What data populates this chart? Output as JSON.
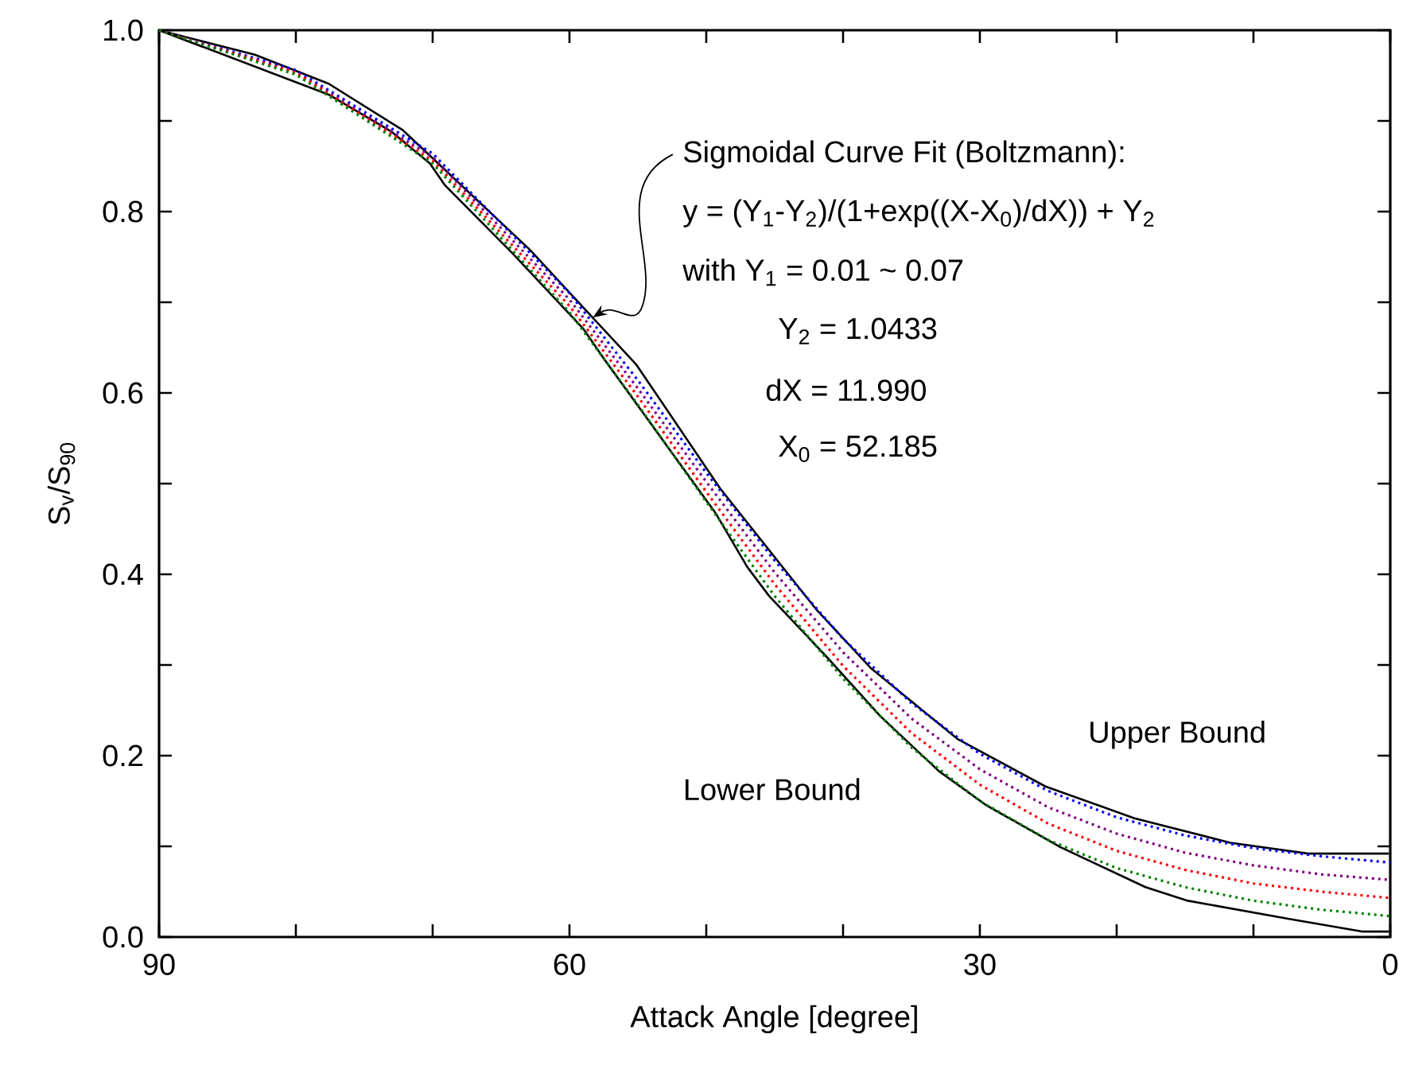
{
  "chart_data": {
    "type": "line",
    "xlabel": "Attack Angle [degree]",
    "ylabel": "S$_{v}$/S$_{90}$",
    "xlim": [
      90,
      0
    ],
    "ylim": [
      0,
      1
    ],
    "xticks": [
      90,
      {
        "value": 80,
        "label": null
      },
      {
        "value": 70,
        "label": null
      },
      60,
      {
        "value": 50,
        "label": null
      },
      {
        "value": 40,
        "label": null
      },
      30,
      {
        "value": 20,
        "label": null
      },
      {
        "value": 10,
        "label": null
      },
      0
    ],
    "yticks": [
      {
        "value": 0,
        "label": "0.0"
      },
      {
        "value": 0.1,
        "label": null
      },
      {
        "value": 0.2,
        "label": "0.2"
      },
      {
        "value": 0.3,
        "label": null
      },
      {
        "value": 0.4,
        "label": "0.4"
      },
      {
        "value": 0.5,
        "label": null
      },
      {
        "value": 0.6,
        "label": "0.6"
      },
      {
        "value": 0.7,
        "label": null
      },
      {
        "value": 0.8,
        "label": "0.8"
      },
      {
        "value": 0.9,
        "label": null
      },
      {
        "value": 1.0,
        "label": "1.0"
      }
    ],
    "series": [
      {
        "color": "#000000",
        "line_style": "solid",
        "x": [
          90,
          83.0,
          77.6,
          72.2,
          62.9,
          58.3,
          55.1,
          49.0,
          42.0,
          38.0,
          34.2,
          31.6,
          25.2,
          18.7,
          11.7,
          6.0,
          0.1
        ],
        "values": [
          1.0,
          0.973,
          0.941,
          0.89,
          0.758,
          0.683,
          0.631,
          0.495,
          0.362,
          0.297,
          0.25,
          0.218,
          0.166,
          0.131,
          0.104,
          0.092,
          0.092
        ]
      },
      {
        "color": "#000000",
        "line_style": "solid",
        "x": [
          90,
          77.6,
          73.0,
          70.2,
          69.1,
          64.1,
          59.0,
          57.4,
          49.3,
          47.0,
          45.4,
          41.2,
          37.3,
          33.0,
          29.5,
          24.1,
          17.9,
          14.8,
          7.4,
          2.0,
          0.1
        ],
        "values": [
          1.0,
          0.929,
          0.888,
          0.853,
          0.829,
          0.753,
          0.671,
          0.636,
          0.467,
          0.408,
          0.376,
          0.309,
          0.244,
          0.183,
          0.145,
          0.099,
          0.055,
          0.04,
          0.02,
          0.006,
          0.006
        ]
      },
      {
        "color": "#0000ff",
        "line_style": "dotted",
        "x": [
          90,
          80,
          70,
          60,
          55,
          50,
          45,
          40,
          35,
          30,
          25,
          20,
          15,
          10,
          5,
          0
        ],
        "values": [
          1.0,
          0.956,
          0.864,
          0.71,
          0.614,
          0.512,
          0.415,
          0.329,
          0.258,
          0.202,
          0.161,
          0.132,
          0.112,
          0.098,
          0.089,
          0.082
        ]
      },
      {
        "color": "#800080",
        "line_style": "dotted",
        "x": [
          90,
          80,
          70,
          60,
          55,
          50,
          45,
          40,
          35,
          30,
          25,
          20,
          15,
          10,
          5,
          0
        ],
        "values": [
          1.0,
          0.954,
          0.86,
          0.703,
          0.605,
          0.502,
          0.402,
          0.314,
          0.241,
          0.185,
          0.143,
          0.114,
          0.093,
          0.079,
          0.069,
          0.063
        ]
      },
      {
        "color": "#ff0000",
        "line_style": "dotted",
        "x": [
          90,
          80,
          70,
          60,
          55,
          50,
          45,
          40,
          35,
          30,
          25,
          20,
          15,
          10,
          5,
          0
        ],
        "values": [
          1.0,
          0.953,
          0.856,
          0.696,
          0.596,
          0.491,
          0.389,
          0.299,
          0.225,
          0.168,
          0.125,
          0.095,
          0.074,
          0.059,
          0.05,
          0.043
        ]
      },
      {
        "color": "#008000",
        "line_style": "dotted",
        "x": [
          90,
          80,
          70,
          60,
          55,
          50,
          45,
          40,
          35,
          30,
          25,
          20,
          15,
          10,
          5,
          0
        ],
        "values": [
          1.0,
          0.951,
          0.853,
          0.689,
          0.587,
          0.48,
          0.376,
          0.285,
          0.209,
          0.15,
          0.107,
          0.076,
          0.055,
          0.04,
          0.03,
          0.023
        ]
      }
    ],
    "annotations": [
      {
        "text": "Sigmoidal Curve Fit (Boltzmann):",
        "x": 58.3,
        "y": 0.683
      },
      "y = (Y$_{1}$-Y$_{2}$)/(1+exp((X-X$_{0}$)/dX)) + Y$_{2}$",
      "with Y$_{1}$ = 0.01 ~ 0.07",
      "Y$_{2}$ = 1.0433",
      "dX = 11.990",
      "X$_{0}$ = 52.185",
      "Upper Bound",
      "Lower Bound"
    ]
  }
}
